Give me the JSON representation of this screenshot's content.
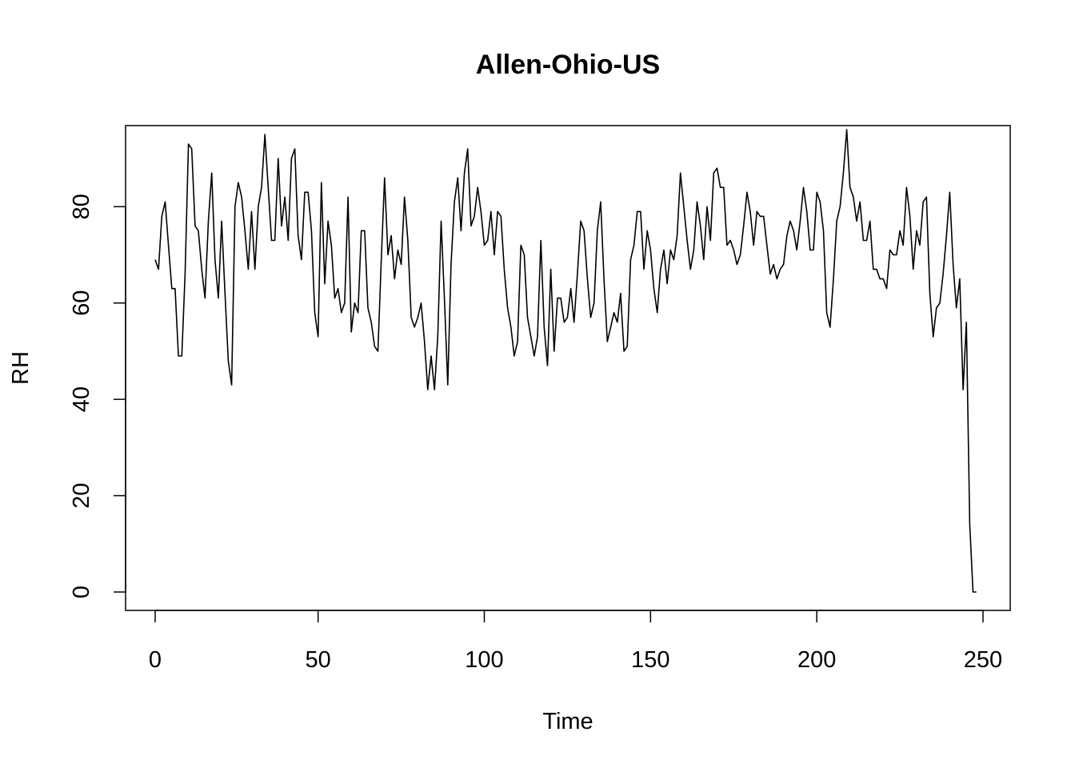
{
  "chart_data": {
    "type": "line",
    "title": "Allen-Ohio-US",
    "xlabel": "Time",
    "ylabel": "RH",
    "xlim": [
      1,
      250
    ],
    "ylim": [
      0,
      96
    ],
    "x_ticks": [
      0,
      50,
      100,
      150,
      200,
      250
    ],
    "y_ticks": [
      0,
      20,
      40,
      60,
      80
    ],
    "grid": false,
    "legend": "none",
    "series": [
      {
        "x_start": 1,
        "x_step": 1,
        "values": [
          69,
          67,
          78,
          81,
          72,
          63,
          63,
          49,
          49,
          66,
          93,
          92,
          76,
          75,
          67,
          61,
          77,
          87,
          69,
          61,
          77,
          62,
          48,
          43,
          80,
          85,
          82,
          75,
          67,
          79,
          67,
          80,
          84,
          95,
          84,
          73,
          73,
          90,
          76,
          82,
          73,
          90,
          92,
          74,
          69,
          83,
          83,
          75,
          58,
          53,
          85,
          64,
          77,
          72,
          61,
          63,
          58,
          60,
          82,
          54,
          60,
          58,
          75,
          75,
          59,
          56,
          51,
          50,
          69,
          86,
          70,
          74,
          65,
          71,
          68,
          82,
          73,
          57,
          55,
          57,
          60,
          52,
          42,
          49,
          42,
          53,
          77,
          61,
          43,
          68,
          81,
          86,
          75,
          87,
          92,
          76,
          78,
          84,
          79,
          72,
          73,
          79,
          70,
          79,
          78,
          67,
          59,
          55,
          49,
          52,
          72,
          70,
          57,
          53,
          49,
          53,
          73,
          55,
          47,
          67,
          50,
          61,
          61,
          56,
          57,
          63,
          56,
          66,
          77,
          75,
          65,
          57,
          60,
          75,
          81,
          65,
          52,
          55,
          58,
          56,
          62,
          50,
          51,
          69,
          72,
          79,
          79,
          67,
          75,
          71,
          63,
          58,
          67,
          71,
          64,
          71,
          69,
          74,
          87,
          80,
          73,
          67,
          71,
          81,
          76,
          69,
          80,
          73,
          87,
          88,
          84,
          84,
          72,
          73,
          71,
          68,
          70,
          76,
          83,
          79,
          72,
          79,
          78,
          78,
          72,
          66,
          68,
          65,
          67,
          68,
          74,
          77,
          75,
          71,
          77,
          84,
          79,
          71,
          71,
          83,
          81,
          75,
          58,
          55,
          65,
          77,
          80,
          87,
          96,
          84,
          82,
          77,
          81,
          73,
          73,
          77,
          67,
          67,
          65,
          65,
          63,
          71,
          70,
          70,
          75,
          72,
          84,
          78,
          67,
          75,
          72,
          81,
          82,
          62,
          53,
          59,
          60,
          66,
          74,
          83,
          68,
          59,
          65,
          42,
          56,
          14,
          0,
          0
        ]
      }
    ]
  }
}
